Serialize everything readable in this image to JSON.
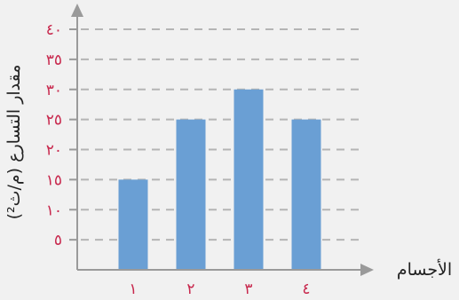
{
  "chart_data": {
    "type": "bar",
    "categories": [
      "١",
      "٢",
      "٣",
      "٤"
    ],
    "values": [
      15,
      25,
      30,
      25
    ],
    "ylim": [
      0,
      40
    ],
    "y_ticks": [
      {
        "value": 5,
        "label": "٥"
      },
      {
        "value": 10,
        "label": "١٠"
      },
      {
        "value": 15,
        "label": "١٥"
      },
      {
        "value": 20,
        "label": "٢٠"
      },
      {
        "value": 25,
        "label": "٢٥"
      },
      {
        "value": 30,
        "label": "٣٠"
      },
      {
        "value": 35,
        "label": "٣٥"
      },
      {
        "value": 40,
        "label": "٤٠"
      }
    ],
    "xlabel": "الأجسام",
    "ylabel": "مقدار التسارع (م/ث²)",
    "grid": true,
    "grid_style": "dashed",
    "title": "",
    "colors": {
      "bar": "#6a9fd4",
      "tick_label": "#c8284d",
      "axis": "#9a9a9a",
      "grid": "#b5b5b5",
      "axis_title": "#222222",
      "background": "#f1f1f1"
    }
  }
}
